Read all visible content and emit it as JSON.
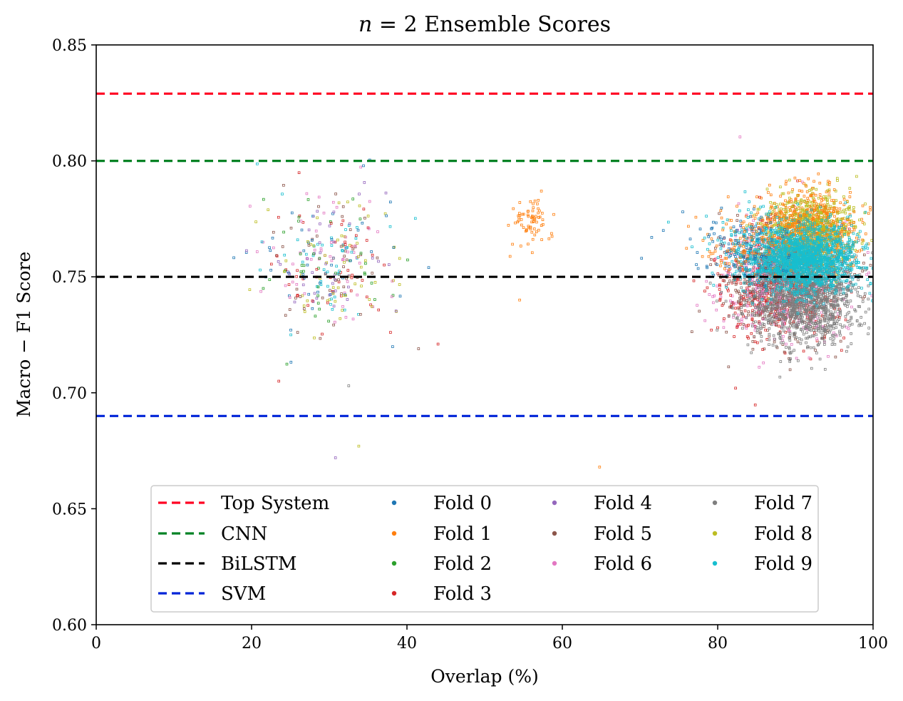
{
  "chart_data": {
    "type": "scatter",
    "title": "n = 2 Ensemble Scores",
    "title_var": "n",
    "title_rest": " = 2 Ensemble Scores",
    "xlabel": "Overlap (%)",
    "ylabel": "Macro − F1 Score",
    "xlim": [
      0,
      100
    ],
    "ylim": [
      0.6,
      0.85
    ],
    "x_ticks": [
      0,
      20,
      40,
      60,
      80,
      100
    ],
    "x_tick_labels": [
      "0",
      "20",
      "40",
      "60",
      "80",
      "100"
    ],
    "y_ticks": [
      0.6,
      0.65,
      0.7,
      0.75,
      0.8,
      0.85
    ],
    "y_tick_labels": [
      "0.60",
      "0.65",
      "0.70",
      "0.75",
      "0.80",
      "0.85"
    ],
    "grid": false,
    "legend_position": "lower-center",
    "reference_lines": [
      {
        "name": "Top System",
        "y": 0.829,
        "color": "#ff0022",
        "style": "dashed"
      },
      {
        "name": "CNN",
        "y": 0.8,
        "color": "#008224",
        "style": "dashed"
      },
      {
        "name": "BiLSTM",
        "y": 0.75,
        "color": "#000000",
        "style": "dashed"
      },
      {
        "name": "SVM",
        "y": 0.69,
        "color": "#0024d8",
        "style": "dashed"
      }
    ],
    "series": [
      {
        "name": "Fold 0",
        "color": "#1f77b4"
      },
      {
        "name": "Fold 1",
        "color": "#ff7f0e"
      },
      {
        "name": "Fold 2",
        "color": "#2ca02c"
      },
      {
        "name": "Fold 3",
        "color": "#d62728"
      },
      {
        "name": "Fold 4",
        "color": "#9467bd"
      },
      {
        "name": "Fold 5",
        "color": "#8c564b"
      },
      {
        "name": "Fold 6",
        "color": "#e377c2"
      },
      {
        "name": "Fold 7",
        "color": "#7f7f7f"
      },
      {
        "name": "Fold 8",
        "color": "#bcbd22"
      },
      {
        "name": "Fold 9",
        "color": "#17becf"
      }
    ],
    "clusters": [
      {
        "x": 30,
        "y": 0.755,
        "sx": 4.5,
        "sy": 0.015,
        "folds": [
          0,
          2,
          3,
          4,
          5,
          6,
          8,
          9
        ],
        "n": 360
      },
      {
        "x": 56,
        "y": 0.772,
        "sx": 1.2,
        "sy": 0.006,
        "folds": [
          1
        ],
        "n": 70
      },
      {
        "x": 88,
        "y": 0.748,
        "sx": 4.0,
        "sy": 0.012,
        "folds": [
          3,
          6,
          5
        ],
        "n": 1500
      },
      {
        "x": 91,
        "y": 0.742,
        "sx": 3.5,
        "sy": 0.01,
        "folds": [
          7
        ],
        "n": 1400
      },
      {
        "x": 92,
        "y": 0.77,
        "sx": 3.0,
        "sy": 0.008,
        "folds": [
          8,
          1
        ],
        "n": 1400
      },
      {
        "x": 91,
        "y": 0.758,
        "sx": 3.5,
        "sy": 0.007,
        "folds": [
          9
        ],
        "n": 1700
      },
      {
        "x": 84,
        "y": 0.765,
        "sx": 3.0,
        "sy": 0.008,
        "folds": [
          0,
          9,
          1
        ],
        "n": 300
      }
    ],
    "outliers": [
      {
        "x": 21.5,
        "y": 0.745,
        "fold": 2
      },
      {
        "x": 23.5,
        "y": 0.705,
        "fold": 3
      },
      {
        "x": 32.5,
        "y": 0.703,
        "fold": 7
      },
      {
        "x": 30.8,
        "y": 0.672,
        "fold": 4
      },
      {
        "x": 33.8,
        "y": 0.677,
        "fold": 8
      },
      {
        "x": 41.5,
        "y": 0.719,
        "fold": 5
      },
      {
        "x": 44.0,
        "y": 0.721,
        "fold": 3
      },
      {
        "x": 42.8,
        "y": 0.754,
        "fold": 0
      },
      {
        "x": 54.5,
        "y": 0.74,
        "fold": 1
      },
      {
        "x": 57.3,
        "y": 0.787,
        "fold": 1
      },
      {
        "x": 64.8,
        "y": 0.668,
        "fold": 1
      },
      {
        "x": 70.2,
        "y": 0.758,
        "fold": 0
      },
      {
        "x": 71.5,
        "y": 0.767,
        "fold": 0
      },
      {
        "x": 73.0,
        "y": 0.77,
        "fold": 0
      },
      {
        "x": 75.5,
        "y": 0.778,
        "fold": 0
      },
      {
        "x": 82.3,
        "y": 0.702,
        "fold": 3
      }
    ],
    "seed": 7
  }
}
